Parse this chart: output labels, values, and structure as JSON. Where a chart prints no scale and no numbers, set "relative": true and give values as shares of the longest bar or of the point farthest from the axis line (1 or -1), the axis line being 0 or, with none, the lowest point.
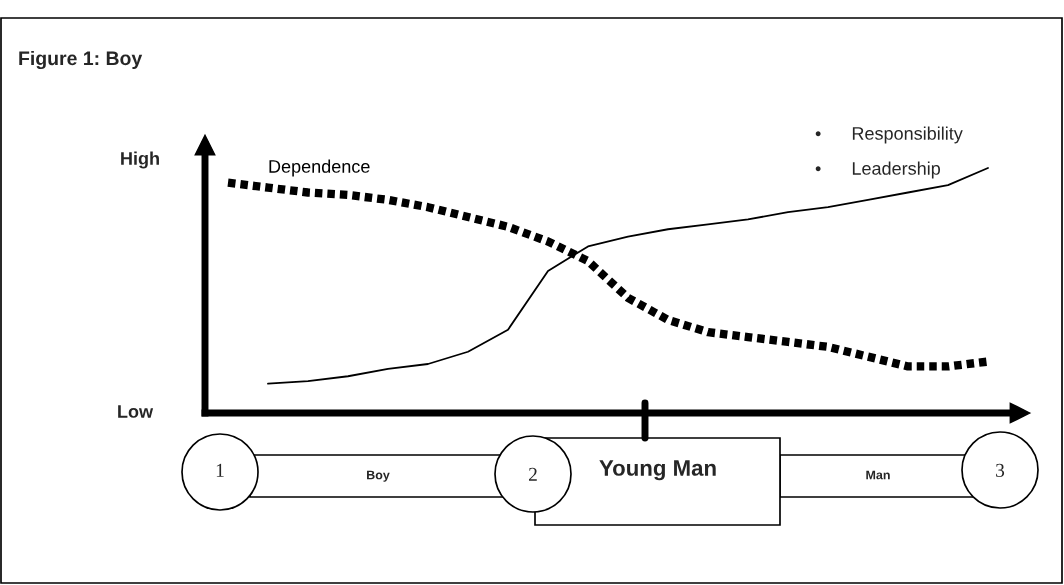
{
  "chart_data": {
    "type": "line",
    "title": "Figure 1: Boy",
    "relative": true,
    "categories": [
      null,
      null,
      null,
      null,
      null,
      null,
      null,
      null,
      null,
      null,
      null,
      null,
      null,
      null,
      null,
      null,
      null,
      null,
      null,
      null
    ],
    "series": [
      {
        "name": "Dependence",
        "color": "#000000",
        "line_style": "dotted",
        "values": [
          0.94,
          0.92,
          0.9,
          0.89,
          0.87,
          0.84,
          0.8,
          0.76,
          0.7,
          0.62,
          0.47,
          0.38,
          0.33,
          0.31,
          0.29,
          0.27,
          0.23,
          0.19,
          0.19,
          0.21
        ]
      },
      {
        "color": "#000000",
        "line_style": "solid",
        "values": [
          null,
          0.12,
          0.13,
          0.15,
          0.18,
          0.2,
          0.25,
          0.34,
          0.58,
          0.68,
          0.72,
          0.75,
          0.77,
          0.79,
          0.82,
          0.84,
          0.87,
          0.9,
          0.93,
          1.0
        ]
      }
    ],
    "annotations": [
      "High",
      "Low",
      "•      Responsibility",
      "•      Leadership",
      "1",
      "Boy",
      "2",
      "Young Man",
      "Man",
      "3"
    ],
    "marker": "none"
  }
}
